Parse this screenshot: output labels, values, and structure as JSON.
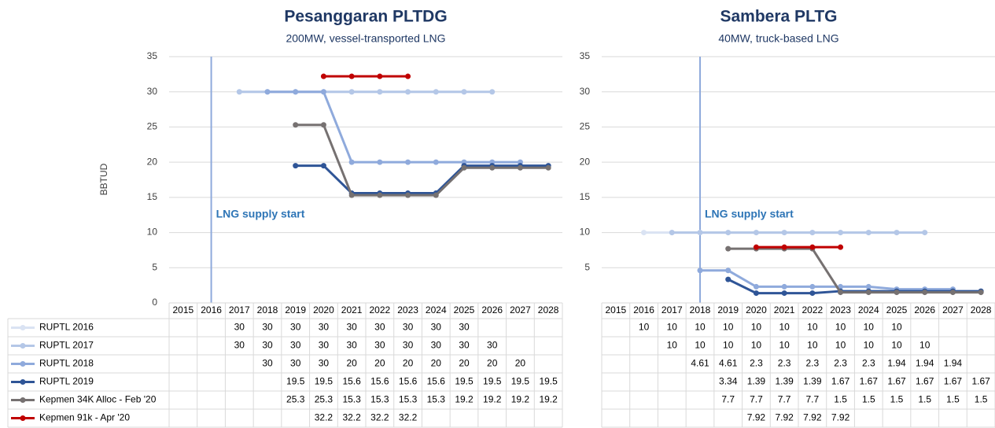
{
  "chart_data": [
    {
      "type": "line",
      "title": "Pesanggaran PLTDG",
      "subtitle": "200MW, vessel-transported LNG",
      "ylabel": "BBTUD",
      "categories": [
        "2015",
        "2016",
        "2017",
        "2018",
        "2019",
        "2020",
        "2021",
        "2022",
        "2023",
        "2024",
        "2025",
        "2026",
        "2027",
        "2028"
      ],
      "ylim": [
        0,
        35
      ],
      "yticks": [
        0,
        5,
        10,
        15,
        20,
        25,
        30,
        35
      ],
      "grid": true,
      "annotation": {
        "text": "LNG supply start",
        "x": "2016"
      },
      "series": [
        {
          "name": "RUPTL 2016",
          "color": "#dae3f3",
          "values": [
            null,
            null,
            30,
            30,
            30,
            30,
            30,
            30,
            30,
            30,
            30,
            null,
            null,
            null
          ]
        },
        {
          "name": "RUPTL 2017",
          "color": "#b4c7e7",
          "values": [
            null,
            null,
            30,
            30,
            30,
            30,
            30,
            30,
            30,
            30,
            30,
            30,
            null,
            null
          ]
        },
        {
          "name": "RUPTL 2018",
          "color": "#8faadc",
          "values": [
            null,
            null,
            null,
            30,
            30,
            30,
            20,
            20,
            20,
            20,
            20,
            20,
            20,
            null
          ]
        },
        {
          "name": "RUPTL 2019",
          "color": "#2f5597",
          "values": [
            null,
            null,
            null,
            null,
            19.5,
            19.5,
            15.6,
            15.6,
            15.6,
            15.6,
            19.5,
            19.5,
            19.5,
            19.5
          ]
        },
        {
          "name": "Kepmen 34K Alloc - Feb '20",
          "color": "#767171",
          "values": [
            null,
            null,
            null,
            null,
            25.3,
            25.3,
            15.3,
            15.3,
            15.3,
            15.3,
            19.2,
            19.2,
            19.2,
            19.2
          ]
        },
        {
          "name": "Kepmen 91k - Apr '20",
          "color": "#c00000",
          "values": [
            null,
            null,
            null,
            null,
            null,
            32.2,
            32.2,
            32.2,
            32.2,
            null,
            null,
            null,
            null,
            null
          ]
        }
      ]
    },
    {
      "type": "line",
      "title": "Sambera PLTG",
      "subtitle": "40MW, truck-based LNG",
      "categories": [
        "2015",
        "2016",
        "2017",
        "2018",
        "2019",
        "2020",
        "2021",
        "2022",
        "2023",
        "2024",
        "2025",
        "2026",
        "2027",
        "2028"
      ],
      "ylim": [
        0,
        35
      ],
      "yticks": [
        5,
        10,
        15,
        20,
        25,
        30,
        35
      ],
      "grid": true,
      "annotation": {
        "text": "LNG supply start",
        "x": "2018"
      },
      "series": [
        {
          "color": "#dae3f3",
          "values": [
            null,
            10,
            10,
            10,
            10,
            10,
            10,
            10,
            10,
            10,
            10,
            null,
            null,
            null
          ]
        },
        {
          "color": "#b4c7e7",
          "values": [
            null,
            null,
            10,
            10,
            10,
            10,
            10,
            10,
            10,
            10,
            10,
            10,
            null,
            null
          ]
        },
        {
          "color": "#8faadc",
          "values": [
            null,
            null,
            null,
            4.61,
            4.61,
            2.3,
            2.3,
            2.3,
            2.3,
            2.3,
            1.94,
            1.94,
            1.94,
            null
          ]
        },
        {
          "color": "#2f5597",
          "values": [
            null,
            null,
            null,
            null,
            3.34,
            1.39,
            1.39,
            1.39,
            1.67,
            1.67,
            1.67,
            1.67,
            1.67,
            1.67
          ]
        },
        {
          "color": "#767171",
          "values": [
            null,
            null,
            null,
            null,
            7.7,
            7.7,
            7.7,
            7.7,
            1.5,
            1.5,
            1.5,
            1.5,
            1.5,
            1.5
          ]
        },
        {
          "color": "#c00000",
          "values": [
            null,
            null,
            null,
            null,
            null,
            7.92,
            7.92,
            7.92,
            7.92,
            null,
            null,
            null,
            null,
            null
          ]
        }
      ]
    }
  ]
}
